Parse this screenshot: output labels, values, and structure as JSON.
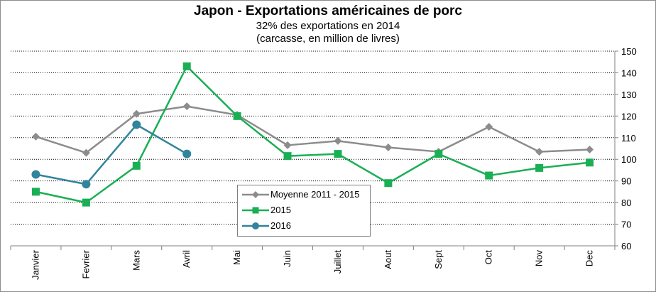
{
  "chart_data": {
    "type": "line",
    "title": "Japon - Exportations américaines de porc",
    "subtitle": "32% des exportations en 2014",
    "subtitle2": "(carcasse, en million de livres)",
    "categories": [
      "Janvier",
      "Fevrier",
      "Mars",
      "Avril",
      "Mai",
      "Juin",
      "Juillet",
      "Aout",
      "Sept",
      "Oct",
      "Nov",
      "Dec"
    ],
    "ylim": [
      60,
      150
    ],
    "yticks": [
      60,
      70,
      80,
      90,
      100,
      110,
      120,
      130,
      140,
      150
    ],
    "grid": true,
    "legend_position": "bottom-center",
    "series": [
      {
        "name": "Moyenne 2011 - 2015",
        "color": "#8c8c8c",
        "marker": "diamond",
        "values": [
          110.5,
          103,
          121,
          124.5,
          120.5,
          106.5,
          108.5,
          105.5,
          103.5,
          115,
          103.5,
          104.5
        ]
      },
      {
        "name": "2015",
        "color": "#1aaf54",
        "marker": "square",
        "values": [
          85,
          80,
          97,
          143,
          120,
          101.5,
          102.5,
          89,
          102.5,
          92.5,
          96,
          98.5
        ]
      },
      {
        "name": "2016",
        "color": "#31849b",
        "marker": "circle",
        "values": [
          93,
          88.5,
          116,
          102.5,
          null,
          null,
          null,
          null,
          null,
          null,
          null,
          null
        ]
      }
    ]
  }
}
